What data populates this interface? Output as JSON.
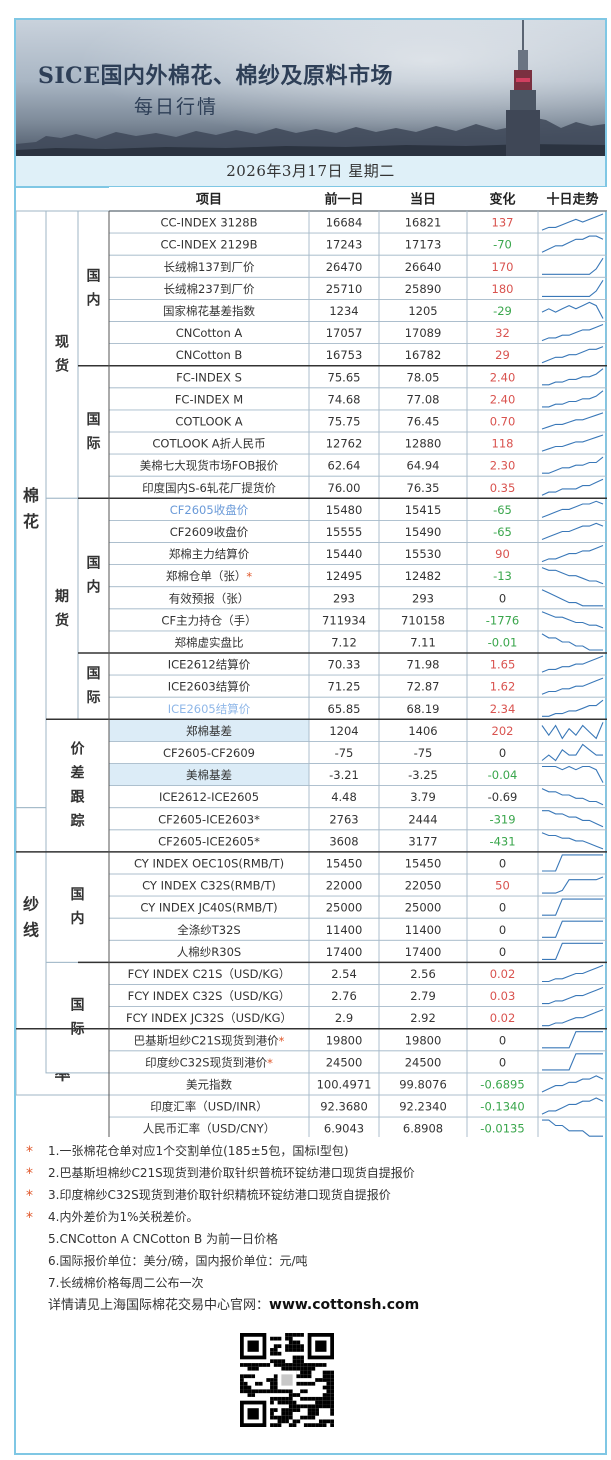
{
  "header": {
    "title": "SICE国内外棉花、棉纱及原料市场",
    "subtitle": "每日行情",
    "date": "2026年3月17日 星期二"
  },
  "columns": [
    "项目",
    "前一日",
    "当日",
    "变化",
    "十日走势"
  ],
  "groups": [
    {
      "label": "棉花",
      "rows": [
        0,
        26
      ]
    },
    {
      "label": "纱线",
      "rows": [
        27,
        36
      ]
    },
    {
      "label": "汇率",
      "rows": [
        37,
        39
      ]
    }
  ],
  "subgroups": [
    {
      "label": "现货",
      "rows": [
        0,
        12
      ]
    },
    {
      "label": "期货",
      "rows": [
        13,
        22
      ]
    },
    {
      "label": "价差跟踪",
      "rows": [
        23,
        28
      ]
    }
  ],
  "regions": [
    {
      "label": "国内",
      "rows": [
        0,
        6
      ]
    },
    {
      "label": "国际",
      "rows": [
        7,
        12
      ]
    },
    {
      "label": "国内",
      "rows": [
        13,
        19
      ]
    },
    {
      "label": "国际",
      "rows": [
        20,
        22
      ]
    },
    {
      "label": "国内",
      "rows": [
        29,
        33
      ]
    },
    {
      "label": "国际",
      "rows": [
        34,
        38
      ]
    }
  ],
  "rows": [
    {
      "name": "CC-INDEX 3128B",
      "prev": "16684",
      "curr": "16821",
      "change": "137",
      "dir": "up",
      "spark": [
        3,
        4,
        4,
        5,
        6,
        7,
        6,
        7,
        8,
        9
      ]
    },
    {
      "name": "CC-INDEX 2129B",
      "prev": "17243",
      "curr": "17173",
      "change": "-70",
      "dir": "down",
      "spark": [
        4,
        5,
        6,
        6,
        7,
        8,
        8,
        9,
        9,
        8
      ]
    },
    {
      "name": "长绒棉137到厂价",
      "prev": "26470",
      "curr": "26640",
      "change": "170",
      "dir": "up",
      "spark": [
        2,
        2,
        2,
        2,
        2,
        2,
        2,
        2,
        4,
        8
      ]
    },
    {
      "name": "长绒棉237到厂价",
      "prev": "25710",
      "curr": "25890",
      "change": "180",
      "dir": "up",
      "spark": [
        2,
        2,
        2,
        2,
        2,
        2,
        2,
        2,
        4,
        8
      ]
    },
    {
      "name": "国家棉花基差指数",
      "prev": "1234",
      "curr": "1205",
      "change": "-29",
      "dir": "down",
      "spark": [
        5,
        6,
        5,
        6,
        7,
        6,
        7,
        8,
        7,
        3
      ]
    },
    {
      "name": "CNCotton A",
      "prev": "17057",
      "curr": "17089",
      "change": "32",
      "dir": "up",
      "spark": [
        3,
        4,
        4,
        5,
        5,
        6,
        7,
        7,
        8,
        9
      ]
    },
    {
      "name": "CNCotton B",
      "prev": "16753",
      "curr": "16782",
      "change": "29",
      "dir": "up",
      "spark": [
        3,
        4,
        5,
        5,
        6,
        6,
        7,
        8,
        8,
        9
      ]
    },
    {
      "name": "FC-INDEX S",
      "prev": "75.65",
      "curr": "78.05",
      "change": "2.40",
      "dir": "up",
      "spark": [
        3,
        3,
        4,
        4,
        5,
        5,
        6,
        6,
        7,
        9
      ]
    },
    {
      "name": "FC-INDEX M",
      "prev": "74.68",
      "curr": "77.08",
      "change": "2.40",
      "dir": "up",
      "spark": [
        3,
        3,
        4,
        4,
        5,
        5,
        6,
        6,
        7,
        9
      ]
    },
    {
      "name": "COTLOOK A",
      "prev": "75.75",
      "curr": "76.45",
      "change": "0.70",
      "dir": "up",
      "spark": [
        2,
        3,
        4,
        4,
        5,
        6,
        6,
        7,
        8,
        9
      ]
    },
    {
      "name": "COTLOOK A折人民币",
      "prev": "12762",
      "curr": "12880",
      "change": "118",
      "dir": "up",
      "spark": [
        2,
        3,
        4,
        4,
        5,
        6,
        6,
        7,
        8,
        9
      ]
    },
    {
      "name": "美棉七大现货市场FOB报价",
      "prev": "62.64",
      "curr": "64.94",
      "change": "2.30",
      "dir": "up",
      "spark": [
        3,
        3,
        4,
        5,
        5,
        6,
        6,
        7,
        7,
        9
      ]
    },
    {
      "name": "印度国内S-6轧花厂提货价",
      "prev": "76.00",
      "curr": "76.35",
      "change": "0.35",
      "dir": "up",
      "spark": [
        3,
        4,
        4,
        5,
        5,
        5,
        6,
        6,
        7,
        8
      ]
    },
    {
      "name": "CF2605收盘价",
      "prev": "15480",
      "curr": "15415",
      "change": "-65",
      "dir": "down",
      "spark": [
        3,
        4,
        5,
        6,
        6,
        7,
        8,
        8,
        9,
        8
      ],
      "name_color": "#6a9ad8"
    },
    {
      "name": "CF2609收盘价",
      "prev": "15555",
      "curr": "15490",
      "change": "-65",
      "dir": "down",
      "spark": [
        3,
        4,
        5,
        6,
        6,
        7,
        8,
        8,
        9,
        8
      ]
    },
    {
      "name": "郑棉主力结算价",
      "prev": "15440",
      "curr": "15530",
      "change": "90",
      "dir": "up",
      "spark": [
        3,
        4,
        4,
        5,
        6,
        6,
        7,
        7,
        8,
        9
      ]
    },
    {
      "name": "郑棉仓单（张）",
      "prev": "12495",
      "curr": "12482",
      "change": "-13",
      "dir": "down",
      "spark": [
        9,
        8,
        8,
        7,
        6,
        6,
        5,
        4,
        4,
        3
      ],
      "star": true
    },
    {
      "name": "有效预报（张）",
      "prev": "293",
      "curr": "293",
      "change": "0",
      "dir": "flat",
      "spark": [
        8,
        7,
        6,
        5,
        4,
        4,
        3,
        3,
        3,
        3
      ]
    },
    {
      "name": "CF主力持仓（手）",
      "prev": "711934",
      "curr": "710158",
      "change": "-1776",
      "dir": "down",
      "spark": [
        9,
        8,
        7,
        7,
        6,
        5,
        5,
        4,
        4,
        3
      ]
    },
    {
      "name": "郑棉虚实盘比",
      "prev": "7.12",
      "curr": "7.11",
      "change": "-0.01",
      "dir": "down",
      "spark": [
        8,
        7,
        7,
        6,
        6,
        5,
        5,
        4,
        4,
        4
      ]
    },
    {
      "name": "ICE2612结算价",
      "prev": "70.33",
      "curr": "71.98",
      "change": "1.65",
      "dir": "up",
      "spark": [
        3,
        4,
        4,
        5,
        5,
        6,
        6,
        7,
        8,
        9
      ]
    },
    {
      "name": "ICE2603结算价",
      "prev": "71.25",
      "curr": "72.87",
      "change": "1.62",
      "dir": "up",
      "spark": [
        3,
        4,
        4,
        5,
        5,
        6,
        6,
        7,
        8,
        9
      ]
    },
    {
      "name": "ICE2605结算价",
      "prev": "65.85",
      "curr": "68.19",
      "change": "2.34",
      "dir": "up",
      "spark": [
        3,
        3,
        4,
        4,
        5,
        5,
        6,
        7,
        7,
        9
      ],
      "name_color": "#8fb7e8"
    },
    {
      "name": "郑棉基差",
      "prev": "1204",
      "curr": "1406",
      "change": "202",
      "dir": "up",
      "spark": [
        7,
        4,
        7,
        3,
        6,
        4,
        7,
        5,
        3,
        8
      ],
      "highlight": true
    },
    {
      "name": "CF2605-CF2609",
      "prev": "-75",
      "curr": "-75",
      "change": "0",
      "dir": "flat",
      "spark": [
        4,
        5,
        4,
        6,
        5,
        5,
        7,
        6,
        5,
        5
      ]
    },
    {
      "name": "美棉基差",
      "prev": "-3.21",
      "curr": "-3.25",
      "change": "-0.04",
      "dir": "down",
      "spark": [
        7,
        7,
        7,
        6,
        7,
        6,
        7,
        7,
        6,
        2
      ],
      "highlight": true
    },
    {
      "name": "ICE2612-ICE2605",
      "prev": "4.48",
      "curr": "3.79",
      "change": "-0.69",
      "dir": "flat",
      "spark": [
        8,
        7,
        7,
        6,
        6,
        5,
        5,
        4,
        4,
        3
      ]
    },
    {
      "name": "CF2605-ICE2603*",
      "prev": "2763",
      "curr": "2444",
      "change": "-319",
      "dir": "down",
      "spark": [
        8,
        8,
        7,
        7,
        6,
        6,
        5,
        5,
        4,
        3
      ]
    },
    {
      "name": "CF2605-ICE2605*",
      "prev": "3608",
      "curr": "3177",
      "change": "-431",
      "dir": "down",
      "spark": [
        9,
        8,
        8,
        7,
        7,
        6,
        6,
        5,
        4,
        3
      ]
    },
    {
      "name": "CY INDEX OEC10S(RMB/T)",
      "prev": "15450",
      "curr": "15450",
      "change": "0",
      "dir": "flat",
      "spark": [
        2,
        2,
        2,
        7,
        7,
        7,
        7,
        7,
        7,
        7
      ]
    },
    {
      "name": "CY INDEX C32S(RMB/T)",
      "prev": "22000",
      "curr": "22050",
      "change": "50",
      "dir": "up",
      "spark": [
        2,
        2,
        2,
        3,
        7,
        7,
        7,
        7,
        7,
        8
      ]
    },
    {
      "name": "CY INDEX JC40S(RMB/T)",
      "prev": "25000",
      "curr": "25000",
      "change": "0",
      "dir": "flat",
      "spark": [
        2,
        2,
        2,
        7,
        7,
        7,
        7,
        7,
        7,
        7
      ]
    },
    {
      "name": "全涤纱T32S",
      "prev": "11400",
      "curr": "11400",
      "change": "0",
      "dir": "flat",
      "spark": [
        2,
        2,
        2,
        7,
        7,
        7,
        7,
        7,
        7,
        7
      ]
    },
    {
      "name": "人棉纱R30S",
      "prev": "17400",
      "curr": "17400",
      "change": "0",
      "dir": "flat",
      "spark": [
        2,
        2,
        2,
        7,
        7,
        7,
        7,
        7,
        7,
        7
      ]
    },
    {
      "name": "FCY INDEX C21S（USD/KG）",
      "prev": "2.54",
      "curr": "2.56",
      "change": "0.02",
      "dir": "up",
      "spark": [
        2,
        2,
        3,
        3,
        4,
        5,
        5,
        6,
        7,
        8
      ]
    },
    {
      "name": "FCY INDEX C32S（USD/KG）",
      "prev": "2.76",
      "curr": "2.79",
      "change": "0.03",
      "dir": "up",
      "spark": [
        2,
        2,
        3,
        3,
        4,
        5,
        5,
        6,
        7,
        8
      ]
    },
    {
      "name": "FCY INDEX JC32S（USD/KG）",
      "prev": "2.9",
      "curr": "2.92",
      "change": "0.02",
      "dir": "up",
      "spark": [
        2,
        2,
        3,
        3,
        4,
        5,
        5,
        6,
        7,
        8
      ]
    },
    {
      "name": "巴基斯坦纱C21S现货到港价",
      "prev": "19800",
      "curr": "19800",
      "change": "0",
      "dir": "flat",
      "spark": [
        2,
        2,
        2,
        2,
        2,
        8,
        8,
        8,
        8,
        8
      ],
      "star": true
    },
    {
      "name": "印度纱C32S现货到港价",
      "prev": "24500",
      "curr": "24500",
      "change": "0",
      "dir": "flat",
      "spark": [
        2,
        2,
        2,
        2,
        2,
        8,
        8,
        8,
        8,
        8
      ],
      "star": true
    },
    {
      "name": "美元指数",
      "prev": "100.4971",
      "curr": "99.8076",
      "change": "-0.6895",
      "dir": "down",
      "spark": [
        3,
        4,
        5,
        5,
        6,
        6,
        7,
        7,
        8,
        7
      ]
    },
    {
      "name": "印度汇率（USD/INR）",
      "prev": "92.3680",
      "curr": "92.2340",
      "change": "-0.1340",
      "dir": "down",
      "spark": [
        3,
        4,
        4,
        5,
        6,
        6,
        7,
        7,
        8,
        7
      ]
    },
    {
      "name": "人民币汇率（USD/CNY）",
      "prev": "6.9043",
      "curr": "6.8908",
      "change": "-0.0135",
      "dir": "down",
      "spark": [
        7,
        7,
        6,
        6,
        5,
        5,
        5,
        4,
        4,
        4
      ]
    }
  ],
  "notes": [
    {
      "text": "1.一张棉花仓单对应1个交割单位(185±5包，国标I型包)",
      "star": true
    },
    {
      "text": "2.巴基斯坦棉纱C21S现货到港价取针织普梳环锭纺港口现货自提报价",
      "star": true
    },
    {
      "text": "3.印度棉纱C32S现货到港价取针织精梳环锭纺港口现货自提报价",
      "star": true
    },
    {
      "text": "4.内外差价为1%关税差价。",
      "star": true
    },
    {
      "text": "5.CNCotton A CNCotton B 为前一日价格",
      "star": false
    },
    {
      "text": "6.国际报价单位：美分/磅，国内报价单位：元/吨",
      "star": false
    },
    {
      "text": "7.长绒棉价格每周二公布一次",
      "star": false
    }
  ],
  "footer": {
    "site_prefix": "详情请见上海国际棉花交易中心官网：",
    "site_url": "www.cottonsh.com"
  },
  "colors": {
    "up": "#d9534f",
    "down": "#3aa64c",
    "flat": "#333333",
    "border": "#7fc7e4",
    "header_bg": "#dff0f8",
    "highlight_bg": "#dcecf7"
  }
}
